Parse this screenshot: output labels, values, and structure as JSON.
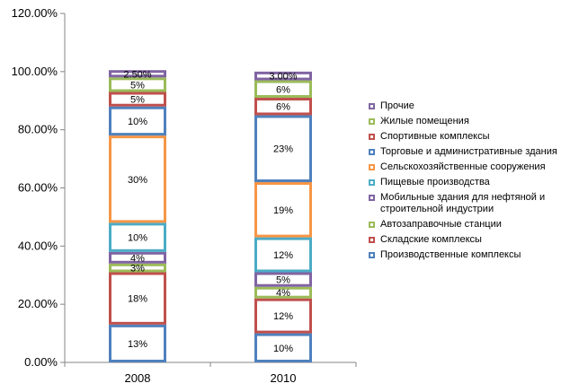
{
  "chart_data": {
    "type": "bar",
    "stacked": true,
    "categories": [
      "2008",
      "2010"
    ],
    "ylim": [
      0,
      120
    ],
    "y_ticks": [
      "0.00%",
      "20.00%",
      "40.00%",
      "60.00%",
      "80.00%",
      "100.00%",
      "120.00%"
    ],
    "grid": false,
    "legend_position": "right",
    "series": [
      {
        "name": "Производственные комплексы",
        "color": "#4f81bd",
        "values": [
          13,
          10
        ],
        "labels": [
          "13%",
          "10%"
        ]
      },
      {
        "name": "Складские комплексы",
        "color": "#c0504d",
        "values": [
          18,
          12
        ],
        "labels": [
          "18%",
          "12%"
        ]
      },
      {
        "name": "Автозаправочные станции",
        "color": "#9bbb59",
        "values": [
          3,
          4
        ],
        "labels": [
          "3%",
          "4%"
        ]
      },
      {
        "name": "Мобильные здания для нефтяной и строительной индустрии",
        "color": "#8064a2",
        "values": [
          4,
          5
        ],
        "labels": [
          "4%",
          "5%"
        ]
      },
      {
        "name": "Пищевые производства",
        "color": "#4bacc6",
        "values": [
          10,
          12
        ],
        "labels": [
          "10%",
          "12%"
        ]
      },
      {
        "name": "Сельскохозяйственные сооружения",
        "color": "#f79646",
        "values": [
          30,
          19
        ],
        "labels": [
          "30%",
          "19%"
        ]
      },
      {
        "name": "Торговые и административные здания",
        "color": "#4f81bd",
        "values": [
          10,
          23
        ],
        "labels": [
          "10%",
          "23%"
        ]
      },
      {
        "name": "Спортивные комплексы",
        "color": "#c0504d",
        "values": [
          5,
          6
        ],
        "labels": [
          "5%",
          "6%"
        ]
      },
      {
        "name": "Жилые помещения",
        "color": "#9bbb59",
        "values": [
          5,
          6
        ],
        "labels": [
          "5%",
          "6%"
        ]
      },
      {
        "name": "Прочие",
        "color": "#8064a2",
        "values": [
          2.5,
          3
        ],
        "labels": [
          "2.50%",
          "3.00%"
        ]
      }
    ]
  }
}
